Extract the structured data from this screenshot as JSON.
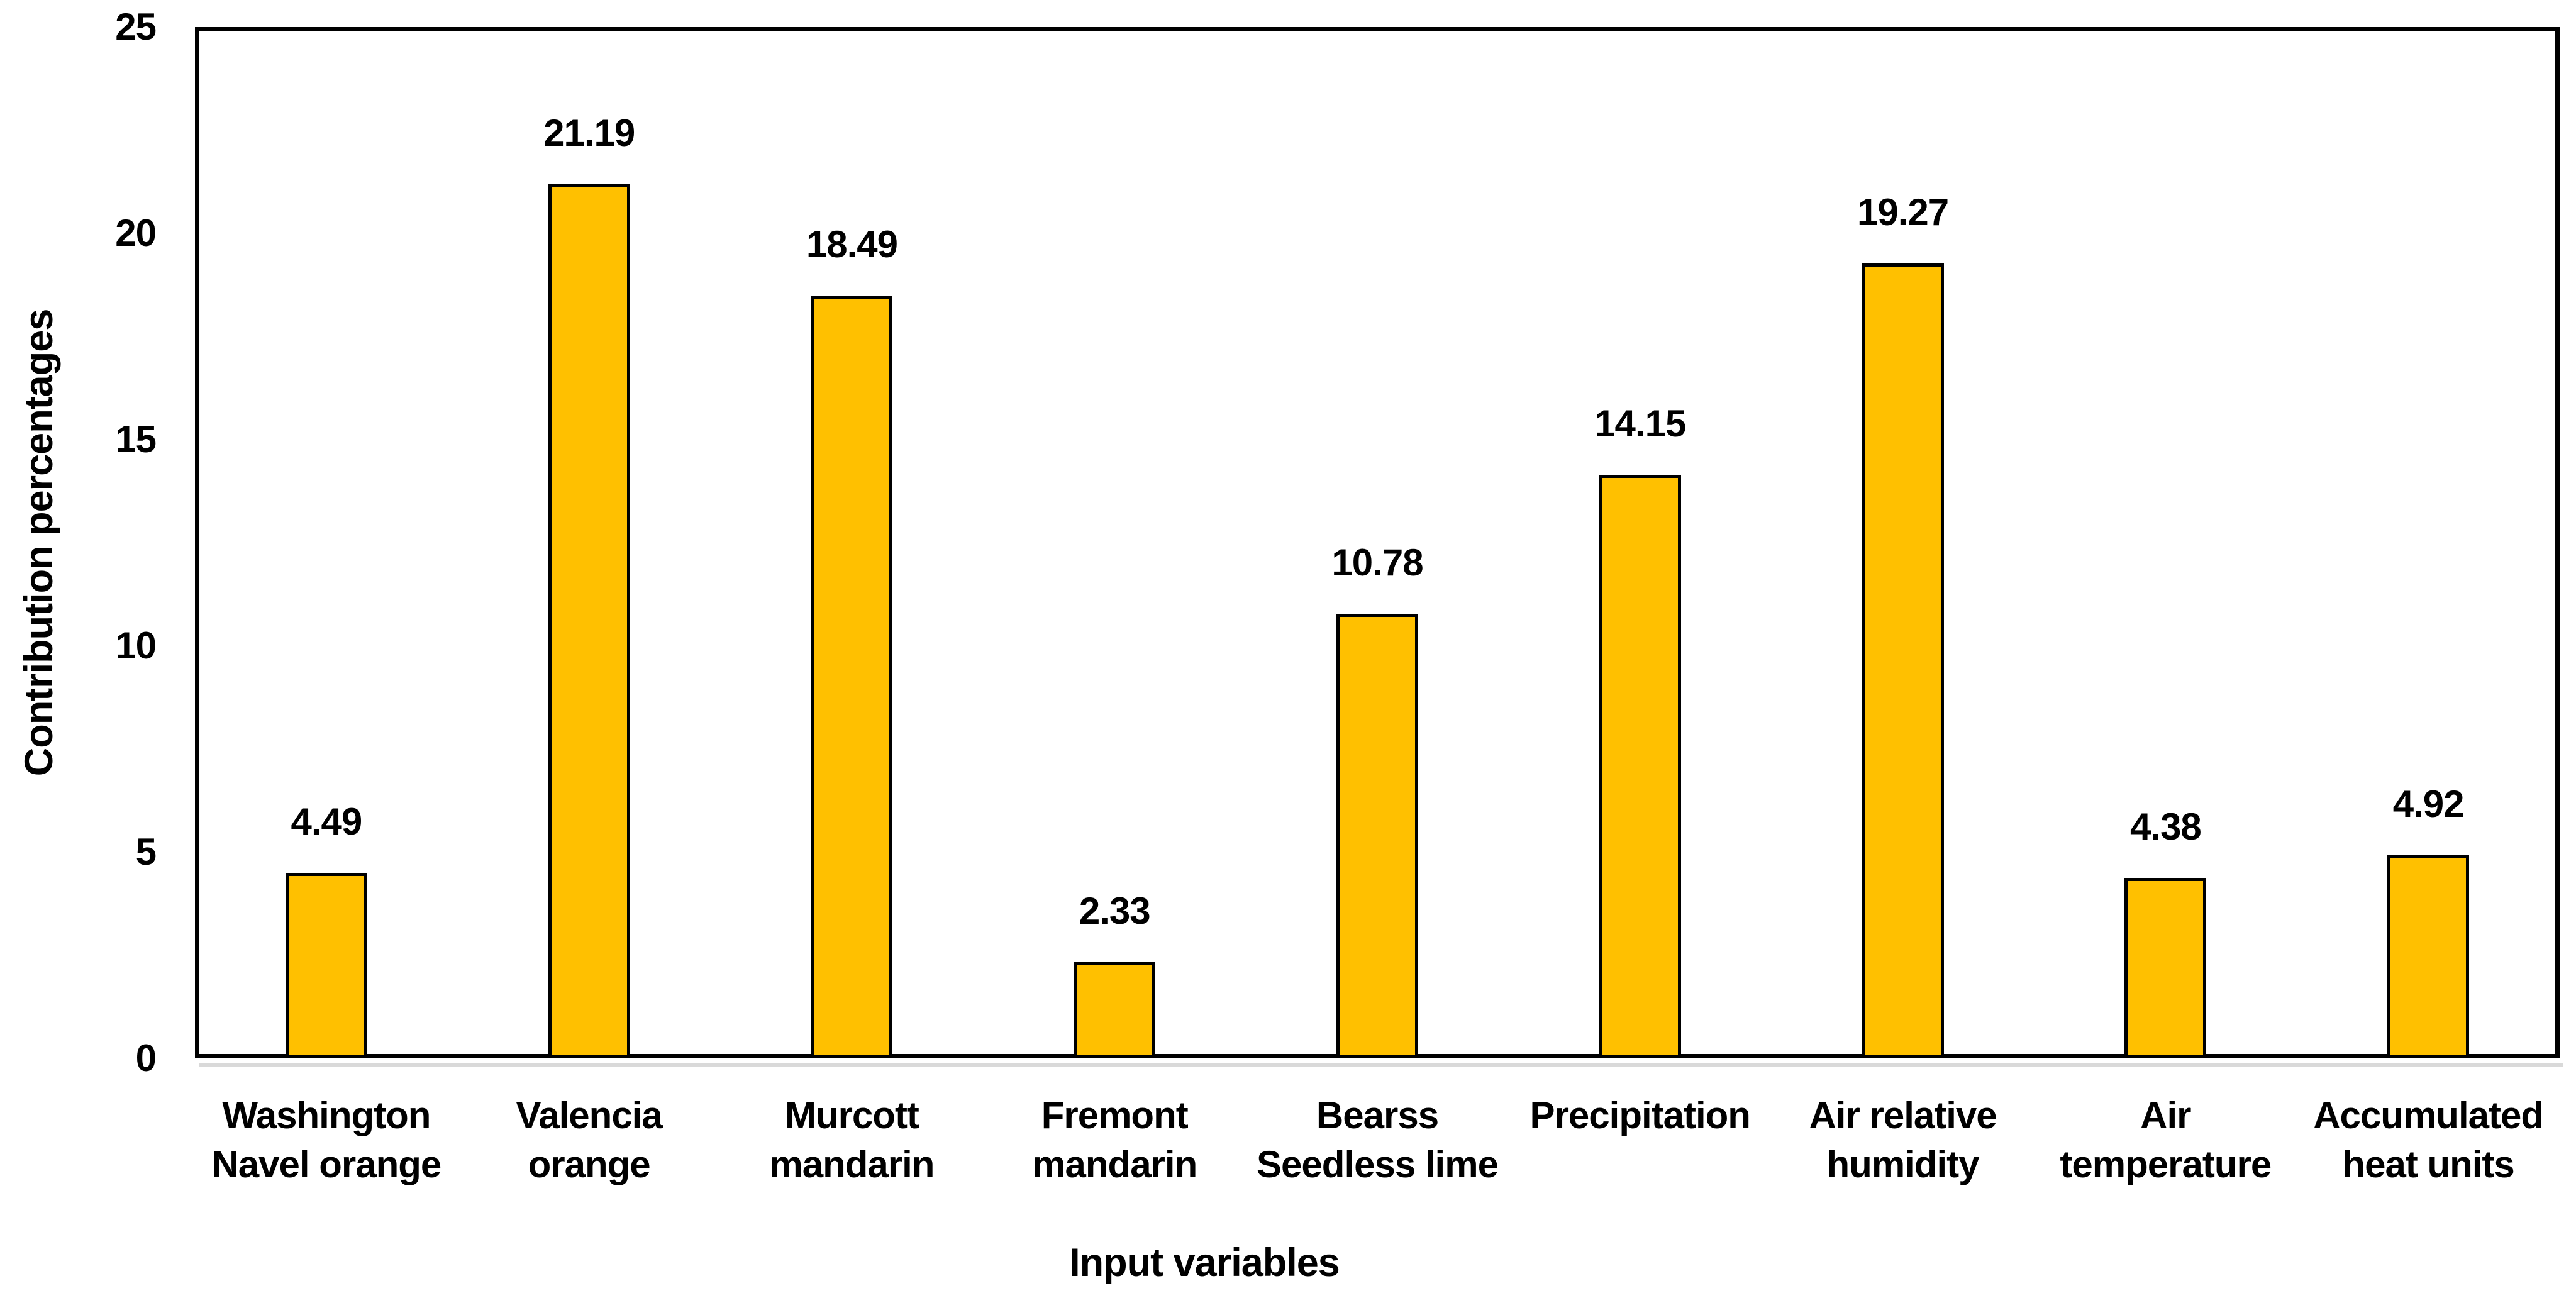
{
  "chart_data": {
    "type": "bar",
    "title": "",
    "xlabel": "Input variables",
    "ylabel": "Contribution percentages",
    "categories": [
      "Washington Navel orange",
      "Valencia orange",
      "Murcott mandarin",
      "Fremont mandarin",
      "Bearss Seedless lime",
      "Precipitation",
      "Air relative humidity",
      "Air temperature",
      "Accumulated heat units"
    ],
    "category_lines": [
      [
        "Washington",
        "Navel orange"
      ],
      [
        "Valencia",
        "orange"
      ],
      [
        "Murcott",
        "mandarin"
      ],
      [
        "Fremont",
        "mandarin"
      ],
      [
        "Bearss",
        "Seedless lime"
      ],
      [
        "Precipitation"
      ],
      [
        "Air relative",
        "humidity"
      ],
      [
        "Air",
        "temperature"
      ],
      [
        "Accumulated",
        "heat units"
      ]
    ],
    "values": [
      4.49,
      21.19,
      18.49,
      2.33,
      10.78,
      14.15,
      19.27,
      4.38,
      4.92
    ],
    "data_labels": [
      "4.49",
      "21.19",
      "18.49",
      "2.33",
      "10.78",
      "14.15",
      "19.27",
      "4.38",
      "4.92"
    ],
    "ylim": [
      0,
      25
    ],
    "yticks": [
      0,
      5,
      10,
      15,
      20,
      25
    ],
    "ytick_labels": [
      "0",
      "5",
      "10",
      "15",
      "20",
      "25"
    ],
    "grid": false,
    "legend_position": "none",
    "colors": {
      "bar_fill": "#FFC000",
      "bar_border": "#000000",
      "frame": "#000000",
      "text": "#000000",
      "axis_shadow": "#D9D9D9"
    }
  }
}
